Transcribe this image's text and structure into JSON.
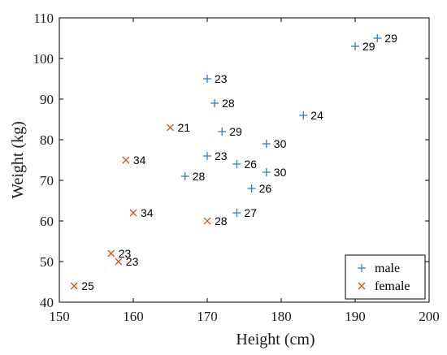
{
  "chart_data": {
    "type": "scatter",
    "title": "",
    "xlabel": "Height (cm)",
    "ylabel": "Weight (kg)",
    "xlim": [
      150,
      200
    ],
    "ylim": [
      40,
      110
    ],
    "xticks": [
      150,
      160,
      170,
      180,
      190,
      200
    ],
    "yticks": [
      40,
      50,
      60,
      70,
      80,
      90,
      100,
      110
    ],
    "grid": false,
    "legend_position": "bottom-right",
    "series": [
      {
        "name": "male",
        "marker": "plus",
        "color": "#2f7fc1",
        "points": [
          {
            "x": 170,
            "y": 95,
            "label": "23"
          },
          {
            "x": 171,
            "y": 89,
            "label": "28"
          },
          {
            "x": 172,
            "y": 82,
            "label": "29"
          },
          {
            "x": 170,
            "y": 76,
            "label": "23"
          },
          {
            "x": 167,
            "y": 71,
            "label": "28"
          },
          {
            "x": 174,
            "y": 74,
            "label": "26"
          },
          {
            "x": 178,
            "y": 79,
            "label": "30"
          },
          {
            "x": 178,
            "y": 72,
            "label": "30"
          },
          {
            "x": 176,
            "y": 68,
            "label": "26"
          },
          {
            "x": 174,
            "y": 62,
            "label": "27"
          },
          {
            "x": 183,
            "y": 86,
            "label": "24"
          },
          {
            "x": 190,
            "y": 103,
            "label": "29"
          },
          {
            "x": 193,
            "y": 105,
            "label": "29"
          }
        ]
      },
      {
        "name": "female",
        "marker": "x",
        "color": "#d9531e",
        "points": [
          {
            "x": 165,
            "y": 83,
            "label": "21"
          },
          {
            "x": 159,
            "y": 75,
            "label": "34"
          },
          {
            "x": 160,
            "y": 62,
            "label": "34"
          },
          {
            "x": 170,
            "y": 60,
            "label": "28"
          },
          {
            "x": 157,
            "y": 52,
            "label": "23"
          },
          {
            "x": 158,
            "y": 50,
            "label": "23"
          },
          {
            "x": 152,
            "y": 44,
            "label": "25"
          }
        ]
      }
    ]
  }
}
